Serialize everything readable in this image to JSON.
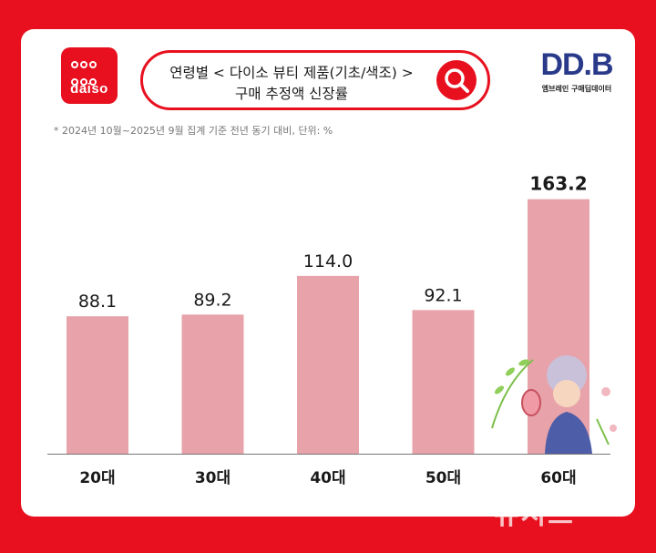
{
  "brand": {
    "logo_text": "daiso",
    "ddb_logo": "DD.B",
    "ddb_subtitle": "엠브레인 구매딥데이터"
  },
  "search": {
    "line1": "연령별 < 다이소 뷰티 제품(기초/색조) >",
    "line2": "구매 추정액 신장률",
    "icon": "search-icon"
  },
  "note": "* 2024년 10월~2025년 9월 집계 기준 전년 동기 대비, 단위: %",
  "watermark": "뉴시스",
  "colors": {
    "background": "#e8101f",
    "bar": "#e8a2a9",
    "accent": "#e8101f"
  },
  "chart_data": {
    "type": "bar",
    "categories": [
      "20대",
      "30대",
      "40대",
      "50대",
      "60대"
    ],
    "values": [
      88.1,
      89.2,
      114.0,
      92.1,
      163.2
    ],
    "value_labels": [
      "88.1",
      "89.2",
      "114.0",
      "92.1",
      "163.2"
    ],
    "title": "",
    "xlabel": "",
    "ylabel": "",
    "ylim": [
      0,
      170
    ],
    "grid": false,
    "highlight_index": 4
  }
}
